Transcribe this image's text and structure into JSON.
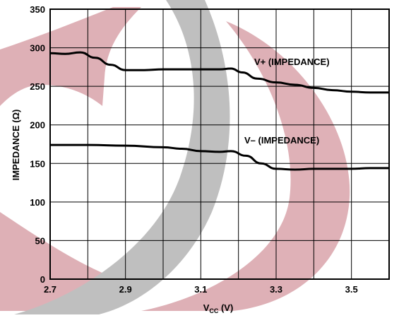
{
  "chart_data": {
    "type": "line",
    "xlabel_main": "V",
    "xlabel_sub": "CC",
    "xlabel_unit": " (V)",
    "ylabel": "IMPEDANCE (Ω)",
    "xlim": [
      2.7,
      3.6
    ],
    "ylim": [
      0,
      350
    ],
    "grid": true,
    "x_ticks": [
      2.7,
      2.8,
      2.9,
      3.0,
      3.1,
      3.2,
      3.3,
      3.4,
      3.5,
      3.6
    ],
    "x_tick_labels": [
      "2.7",
      "",
      "2.9",
      "",
      "3.1",
      "",
      "3.3",
      "",
      "3.5",
      ""
    ],
    "y_ticks": [
      0,
      50,
      100,
      150,
      200,
      250,
      300,
      350
    ],
    "y_tick_labels": [
      "0",
      "50",
      "100",
      "150",
      "200",
      "250",
      "300",
      "350"
    ],
    "series": [
      {
        "name": "V+ (IMPEDANCE)",
        "x": [
          2.7,
          2.74,
          2.78,
          2.82,
          2.86,
          2.9,
          2.95,
          3.0,
          3.05,
          3.1,
          3.15,
          3.18,
          3.21,
          3.25,
          3.3,
          3.35,
          3.4,
          3.45,
          3.5,
          3.55,
          3.6
        ],
        "y": [
          293,
          292,
          294,
          287,
          278,
          271,
          271,
          272,
          272,
          272,
          272,
          273,
          268,
          260,
          255,
          252,
          248,
          245,
          243,
          242,
          242
        ],
        "color": "#000000"
      },
      {
        "name": "V– (IMPEDANCE)",
        "x": [
          2.7,
          2.8,
          2.9,
          3.0,
          3.05,
          3.1,
          3.15,
          3.18,
          3.22,
          3.26,
          3.3,
          3.35,
          3.4,
          3.45,
          3.5,
          3.55,
          3.6
        ],
        "y": [
          174,
          174,
          173,
          171,
          169,
          166,
          165,
          166,
          160,
          150,
          143,
          142,
          143,
          143,
          143,
          144,
          144
        ],
        "color": "#000000"
      }
    ]
  },
  "colors": {
    "watermark_red": "#d9a3aa",
    "watermark_gray": "#b5b5b5",
    "line": "#000000",
    "grid": "#000000"
  }
}
